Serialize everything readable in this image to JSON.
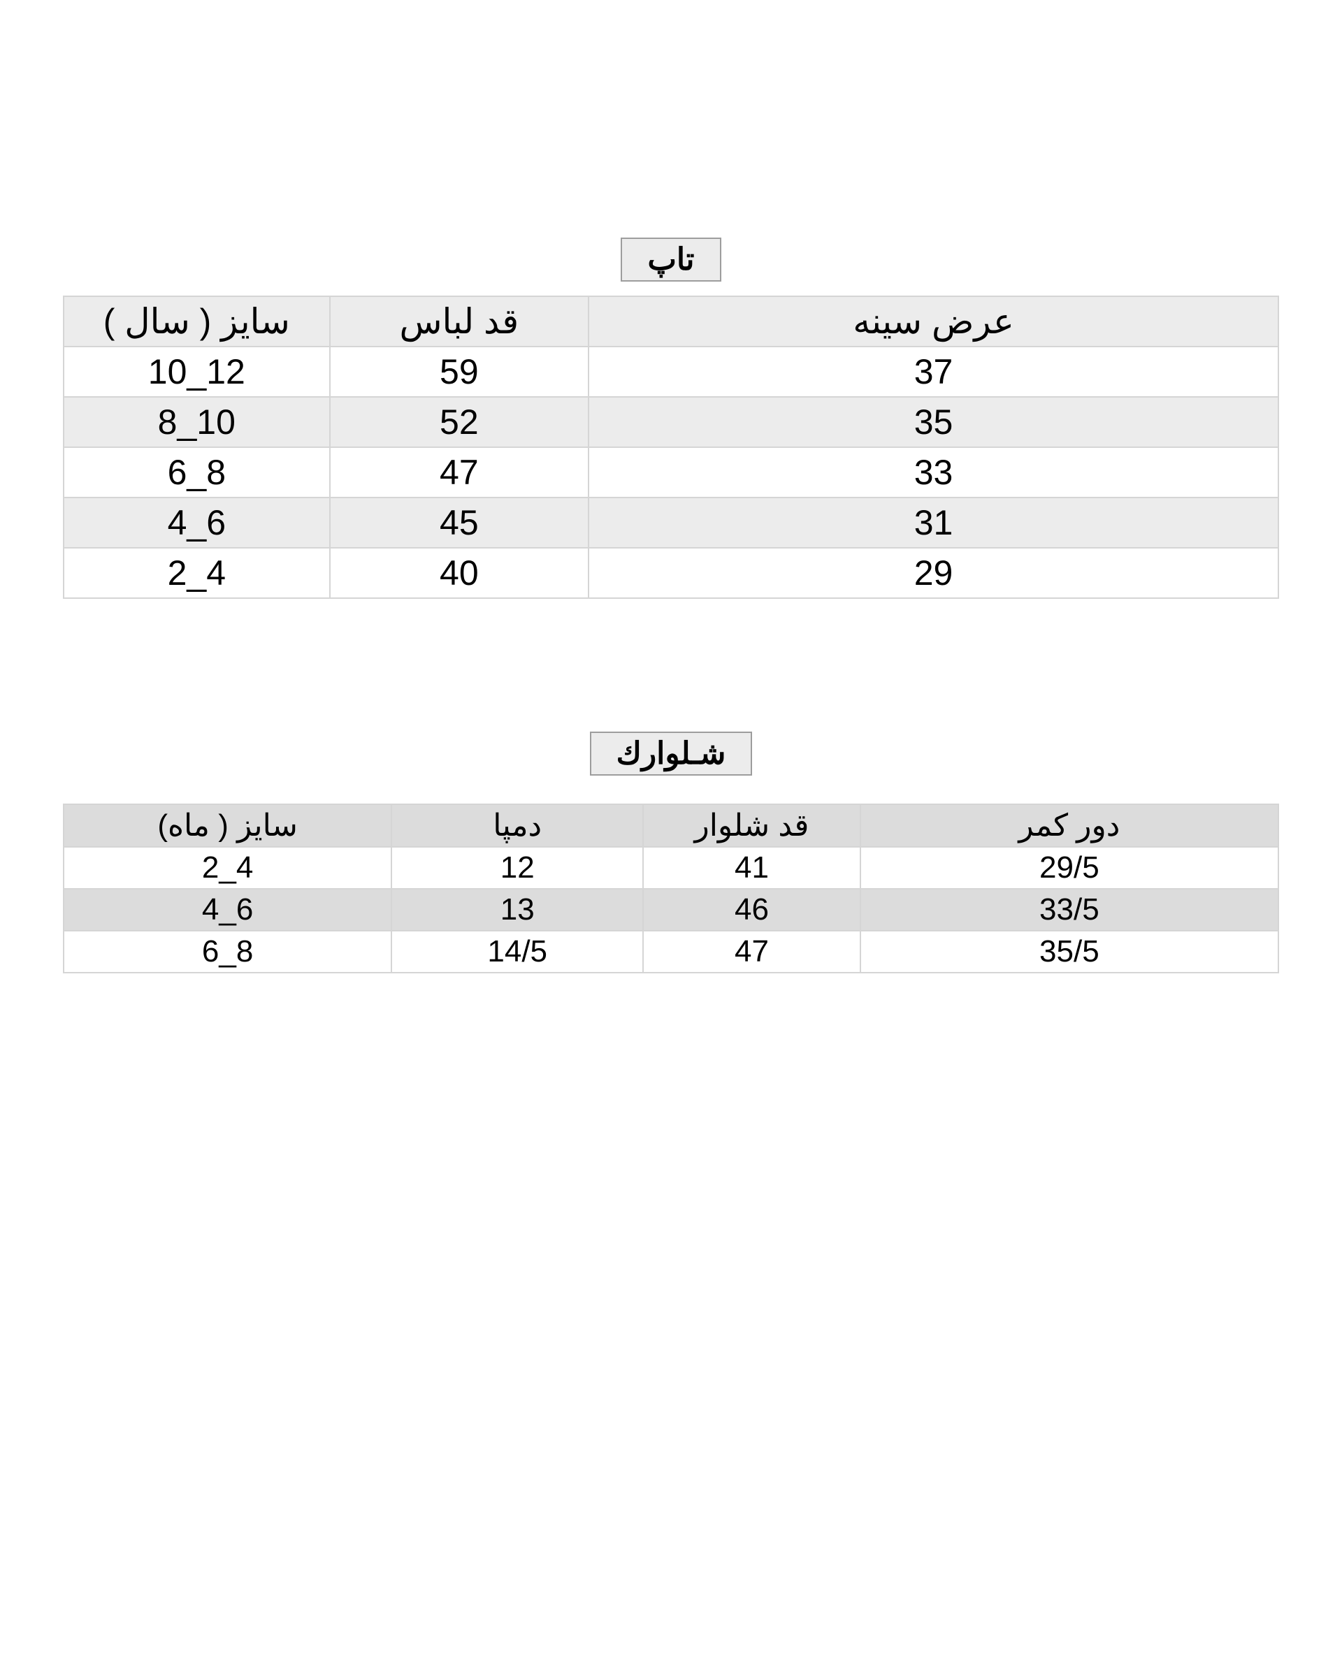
{
  "section1": {
    "title": "تاپ",
    "columns": [
      "سایز ( سال )",
      "قد لباس",
      "عرض سینه"
    ],
    "rows": [
      [
        "10_12",
        "59",
        "37"
      ],
      [
        "8_10",
        "52",
        "35"
      ],
      [
        "6_8",
        "47",
        "33"
      ],
      [
        "4_6",
        "45",
        "31"
      ],
      [
        "2_4",
        "40",
        "29"
      ]
    ]
  },
  "section2": {
    "title": "شـلوارك",
    "columns": [
      "سایز ( ماه)",
      "دمپا",
      "قد شلوار",
      "دور کمر"
    ],
    "rows": [
      [
        "2_4",
        "12",
        "41",
        "29/5"
      ],
      [
        "4_6",
        "13",
        "46",
        "33/5"
      ],
      [
        "6_8",
        "14/5",
        "47",
        "35/5"
      ]
    ]
  }
}
